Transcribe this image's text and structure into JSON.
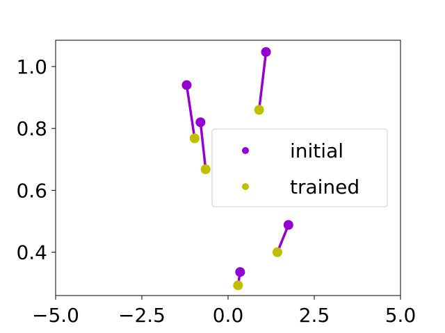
{
  "chart_data": {
    "type": "scatter",
    "title": "",
    "xlabel": "",
    "ylabel": "",
    "xlim": [
      -5.0,
      5.0
    ],
    "ylim": [
      0.26,
      1.085
    ],
    "x_ticks": [
      -5.0,
      -2.5,
      0.0,
      2.5,
      5.0
    ],
    "x_tick_labels": [
      "−5.0",
      "−2.5",
      "0.0",
      "2.5",
      "5.0"
    ],
    "y_ticks": [
      0.4,
      0.6,
      0.8,
      1.0
    ],
    "y_tick_labels": [
      "0.4",
      "0.6",
      "0.8",
      "1.0"
    ],
    "grid": false,
    "legend_position": "center-right",
    "series": [
      {
        "name": "initial",
        "color": "#9400D3",
        "points": [
          {
            "x": -1.2,
            "y": 0.94
          },
          {
            "x": -0.8,
            "y": 0.82
          },
          {
            "x": 1.1,
            "y": 1.047
          },
          {
            "x": 1.75,
            "y": 0.488
          },
          {
            "x": 0.35,
            "y": 0.336
          }
        ]
      },
      {
        "name": "trained",
        "color": "#BFBF00",
        "points": [
          {
            "x": -0.97,
            "y": 0.768
          },
          {
            "x": -0.65,
            "y": 0.668
          },
          {
            "x": 0.9,
            "y": 0.86
          },
          {
            "x": 1.43,
            "y": 0.4
          },
          {
            "x": 0.29,
            "y": 0.293
          }
        ]
      }
    ],
    "connections_color": "#9400D3"
  }
}
